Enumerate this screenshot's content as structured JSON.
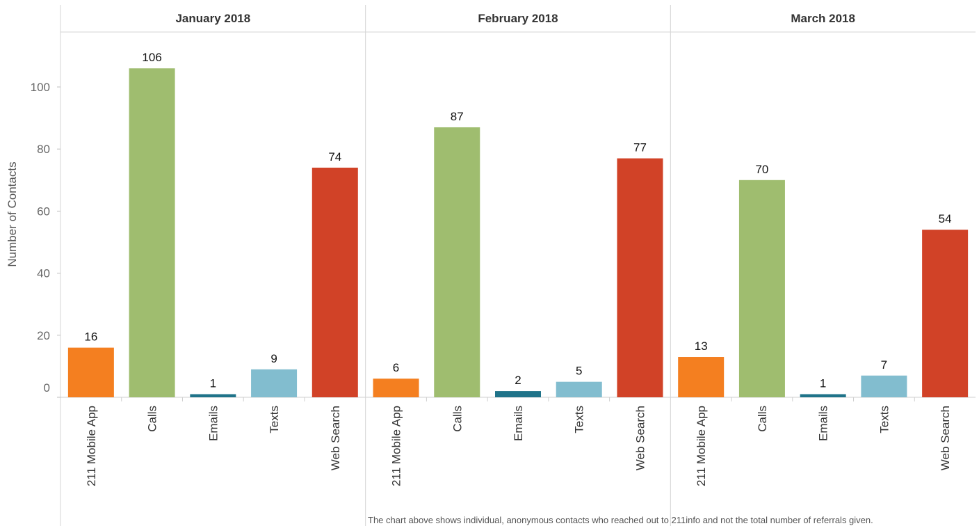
{
  "chart_data": {
    "type": "bar",
    "ylabel": "Number of Contacts",
    "ylim": [
      0,
      114
    ],
    "yticks": [
      0,
      20,
      40,
      60,
      80,
      100
    ],
    "grid": false,
    "categories": [
      "211 Mobile App",
      "Calls",
      "Emails",
      "Texts",
      "Web Search"
    ],
    "colors": {
      "211 Mobile App": "#f47f20",
      "Calls": "#9fbd6f",
      "Emails": "#1f7389",
      "Texts": "#82bdcf",
      "Web Search": "#d14227"
    },
    "panels": [
      {
        "title": "January 2018",
        "values": [
          16,
          106,
          1,
          9,
          74
        ]
      },
      {
        "title": "February 2018",
        "values": [
          6,
          87,
          2,
          5,
          77
        ]
      },
      {
        "title": "March 2018",
        "values": [
          13,
          70,
          1,
          7,
          54
        ]
      }
    ]
  },
  "footnote": "The chart above shows individual, anonymous contacts who reached out to 211info and not the total number of referrals given."
}
